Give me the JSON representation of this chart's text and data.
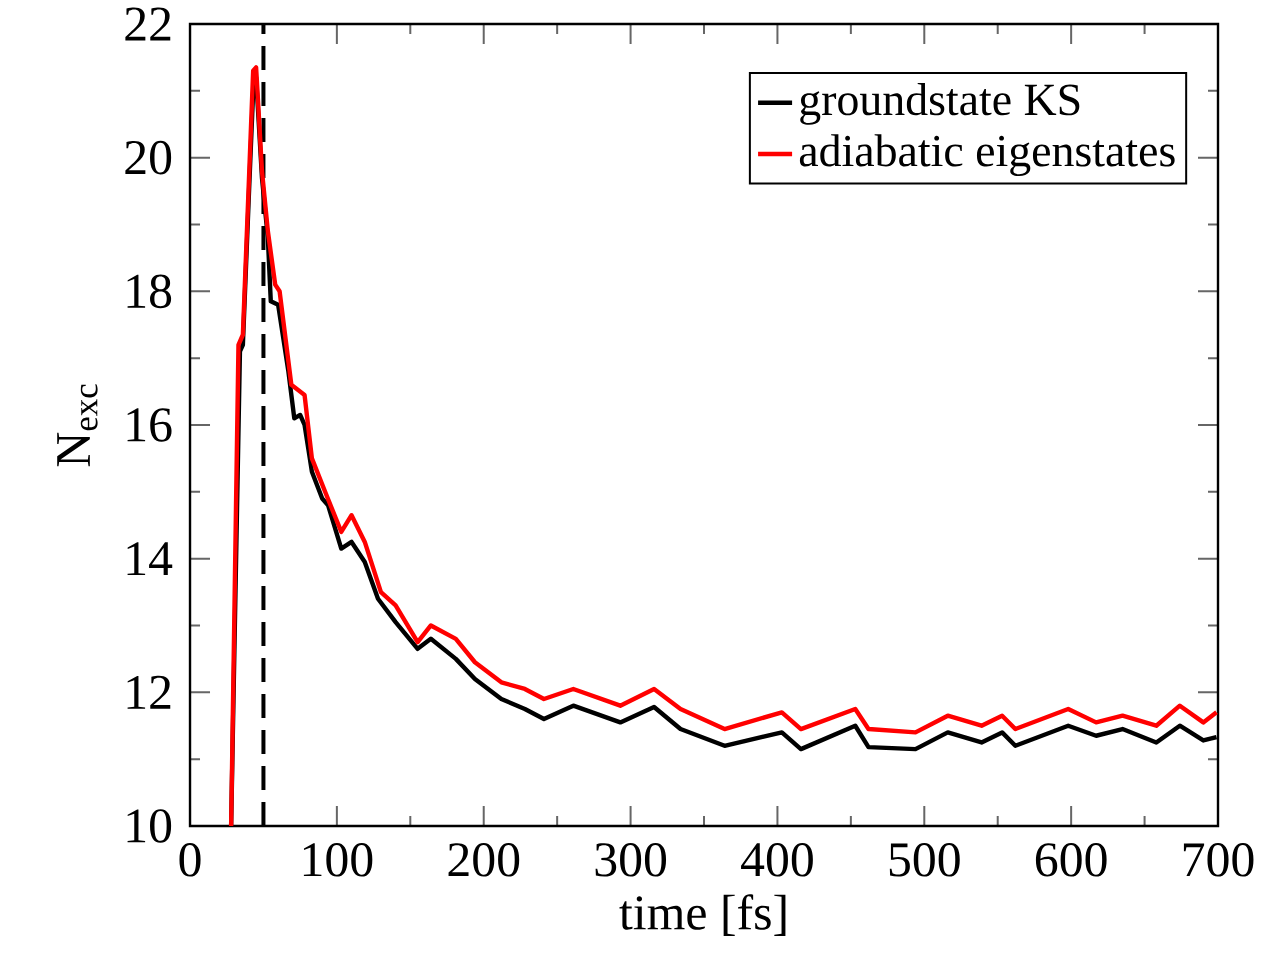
{
  "chart_data": {
    "type": "line",
    "xlabel": "time [fs]",
    "ylabel": "N$_{exc}$",
    "xlim": [
      0,
      700
    ],
    "ylim": [
      10,
      22
    ],
    "xticks": [
      0,
      100,
      200,
      300,
      400,
      500,
      600,
      700
    ],
    "yticks": [
      10,
      12,
      14,
      16,
      18,
      20,
      22
    ],
    "legend": "top right",
    "grid": false,
    "ref_lines": [
      {
        "axis": "x",
        "value": 50,
        "color": "#000000",
        "line_style": "dashed"
      }
    ],
    "series": [
      {
        "name": "groundstate KS",
        "color": "#000000",
        "x": [
          28,
          34,
          36,
          40,
          43,
          45,
          49,
          53,
          55,
          60,
          67,
          71,
          75,
          78,
          83,
          90,
          94,
          103,
          110,
          119,
          128,
          140,
          155,
          164,
          181,
          194,
          212,
          228,
          241,
          261,
          293,
          316,
          334,
          364,
          403,
          416,
          453,
          462,
          494,
          516,
          539,
          553,
          562,
          598,
          617,
          635,
          658,
          674,
          690,
          699
        ],
        "values": [
          10,
          17.1,
          17.2,
          19.4,
          21.0,
          21.2,
          19.7,
          18.8,
          17.85,
          17.8,
          16.8,
          16.1,
          16.15,
          16.0,
          15.3,
          14.9,
          14.8,
          14.15,
          14.25,
          13.95,
          13.4,
          13.05,
          12.65,
          12.8,
          12.5,
          12.2,
          11.9,
          11.75,
          11.6,
          11.8,
          11.55,
          11.78,
          11.45,
          11.2,
          11.4,
          11.15,
          11.5,
          11.18,
          11.15,
          11.4,
          11.25,
          11.4,
          11.2,
          11.5,
          11.35,
          11.45,
          11.25,
          11.5,
          11.28,
          11.33
        ]
      },
      {
        "name": "adiabatic eigenstates",
        "color": "#ff0000",
        "x": [
          28,
          33,
          36,
          40,
          43,
          45,
          49,
          53,
          58,
          61,
          69,
          78,
          83,
          92,
          103,
          110,
          119,
          130,
          140,
          155,
          164,
          181,
          194,
          212,
          228,
          241,
          261,
          293,
          316,
          334,
          364,
          403,
          416,
          453,
          462,
          494,
          516,
          539,
          553,
          562,
          598,
          617,
          635,
          658,
          674,
          690,
          699
        ],
        "values": [
          10,
          17.2,
          17.35,
          19.6,
          21.3,
          21.35,
          19.8,
          18.9,
          18.1,
          18.0,
          16.6,
          16.45,
          15.5,
          15.0,
          14.4,
          14.65,
          14.25,
          13.5,
          13.3,
          12.75,
          13.0,
          12.8,
          12.45,
          12.15,
          12.05,
          11.9,
          12.05,
          11.8,
          12.05,
          11.75,
          11.45,
          11.7,
          11.45,
          11.75,
          11.45,
          11.4,
          11.65,
          11.5,
          11.65,
          11.45,
          11.75,
          11.55,
          11.65,
          11.5,
          11.8,
          11.55,
          11.7
        ]
      }
    ]
  }
}
